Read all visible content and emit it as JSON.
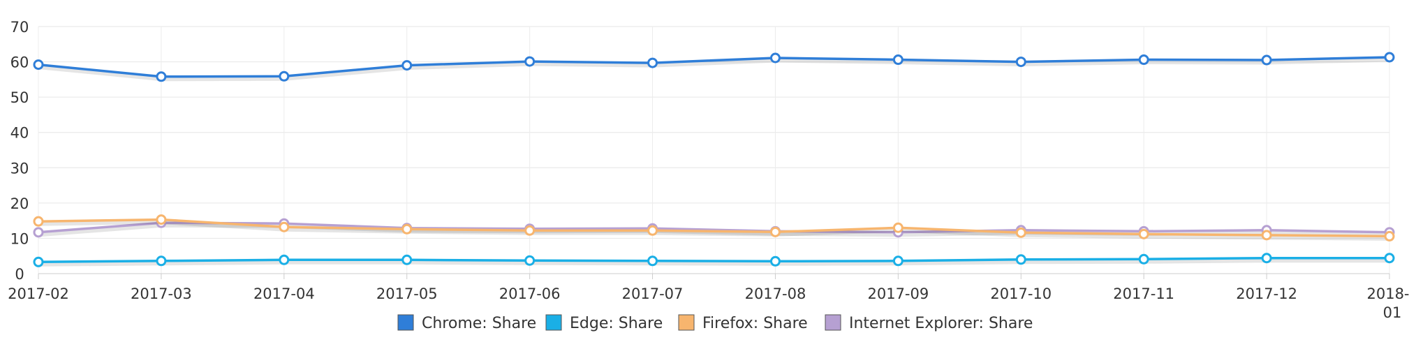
{
  "chart_data": {
    "type": "line",
    "title": "",
    "xlabel": "",
    "ylabel": "",
    "ylim": [
      0,
      70
    ],
    "yticks": [
      "0",
      "10",
      "20",
      "30",
      "40",
      "50",
      "60",
      "70"
    ],
    "grid": true,
    "legend_position": "bottom-center",
    "categories": [
      "2017-02",
      "2017-03",
      "2017-04",
      "2017-05",
      "2017-06",
      "2017-07",
      "2017-08",
      "2017-09",
      "2017-10",
      "2017-11",
      "2017-12",
      "2018-01"
    ],
    "series": [
      {
        "name": "Chrome: Share",
        "color": "#2f7ed8",
        "values": [
          59.2,
          55.8,
          55.9,
          59.0,
          60.1,
          59.7,
          61.1,
          60.6,
          60.0,
          60.6,
          60.5,
          61.3
        ]
      },
      {
        "name": "Edge: Share",
        "color": "#1aafe6",
        "values": [
          3.3,
          3.6,
          3.9,
          3.9,
          3.7,
          3.6,
          3.5,
          3.6,
          4.0,
          4.1,
          4.4,
          4.4
        ]
      },
      {
        "name": "Firefox: Share",
        "color": "#f7b56e",
        "values": [
          14.8,
          15.3,
          13.2,
          12.6,
          12.2,
          12.2,
          11.8,
          13.0,
          11.6,
          11.2,
          10.9,
          10.6
        ]
      },
      {
        "name": "Internet Explorer: Share",
        "color": "#b6a0d2",
        "values": [
          11.7,
          14.4,
          14.2,
          12.9,
          12.7,
          12.8,
          12.0,
          11.7,
          12.3,
          12.0,
          12.3,
          11.7
        ]
      }
    ]
  }
}
